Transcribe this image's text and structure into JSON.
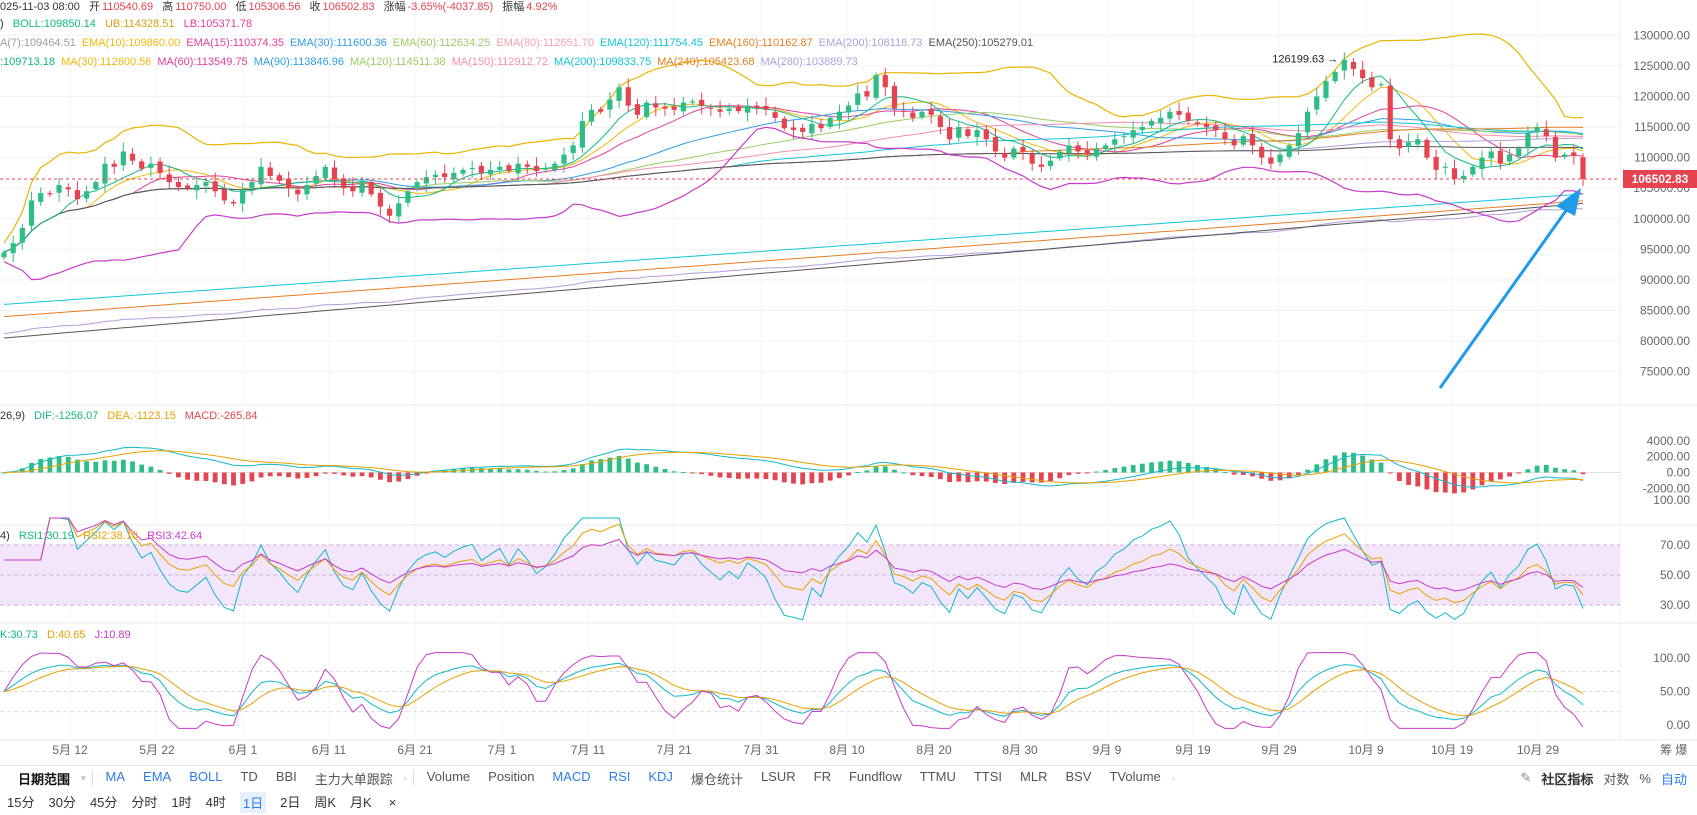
{
  "header": {
    "time": "025-11-03 08:00",
    "open_label": "开",
    "open": "110540.69",
    "high_label": "高",
    "high": "110750.00",
    "low_label": "低",
    "low": "105306.56",
    "close_label": "收",
    "close": "106502.83",
    "change_label": "涨幅",
    "change": "-3.65%(-4037.85)",
    "amp_label": "振幅",
    "amplitude": "4.92%"
  },
  "boll": {
    "mid": "BOLL:109850.14",
    "ub": "UB:114328.51",
    "lb": "LB:105371.78"
  },
  "ema_row": [
    {
      "text": "A(7):109464.51",
      "color": "#9e9e9e"
    },
    {
      "text": "EMA(10):109860.00",
      "color": "#f0b90b"
    },
    {
      "text": "EMA(15):110374.35",
      "color": "#e0409a"
    },
    {
      "text": "EMA(30):111600.36",
      "color": "#2f9ee6"
    },
    {
      "text": "EMA(60):112634.25",
      "color": "#9ccc65"
    },
    {
      "text": "EMA(80):112651.70",
      "color": "#f4a3b0"
    },
    {
      "text": "EMA(120):111754.45",
      "color": "#12c5d8"
    },
    {
      "text": "EMA(160):110162.87",
      "color": "#e67e22"
    },
    {
      "text": "EMA(200):108118.73",
      "color": "#b39ddb"
    },
    {
      "text": "EMA(250):105279.01",
      "color": "#555555"
    }
  ],
  "ma_row": [
    {
      "text": ":109713.18",
      "color": "#12b886"
    },
    {
      "text": "MA(30):112600.56",
      "color": "#f0b90b"
    },
    {
      "text": "MA(60):113549.75",
      "color": "#e0409a"
    },
    {
      "text": "MA(90):113846.96",
      "color": "#2f9ee6"
    },
    {
      "text": "MA(120):114511.38",
      "color": "#9ccc65"
    },
    {
      "text": "MA(150):112912.72",
      "color": "#f48fb1"
    },
    {
      "text": "MA(200):109833.75",
      "color": "#12c5d8"
    },
    {
      "text": "MA(240):105423.68",
      "color": "#e67e22"
    },
    {
      "text": "MA(280):103889.73",
      "color": "#b39ddb"
    }
  ],
  "macd": {
    "params": "26,9)",
    "dif": "DIF:-1256.07",
    "dea": "DEA:-1123.15",
    "macd": "MACD:-265.84"
  },
  "rsi": {
    "params": "4)",
    "rsi1": "RSI1:30.19",
    "rsi2": "RSI2:38.10",
    "rsi3": "RSI3:42.64"
  },
  "kdj": {
    "k": "K:30.73",
    "d": "D:40.65",
    "j": "J:10.89"
  },
  "colors": {
    "up": "#2ebd85",
    "down": "#e5434f",
    "accent": "#2d7be8",
    "arrow": "#1e9be9"
  },
  "bottom_bar": {
    "date_range": "日期范围",
    "left_items": [
      "MA",
      "EMA",
      "BOLL",
      "TD",
      "BBI",
      "主力大单跟踪"
    ],
    "mid_items": [
      "Volume",
      "Position",
      "MACD",
      "RSI",
      "KDJ",
      "爆仓统计",
      "LSUR",
      "FR",
      "Fundflow",
      "TTMU",
      "TTSI",
      "MLR",
      "BSV",
      "TVolume"
    ],
    "community": "社区指标",
    "log": "对数",
    "pct": "%",
    "auto": "自动"
  },
  "interval_bar": {
    "items": [
      "15分",
      "30分",
      "45分",
      "分时",
      "1时",
      "4时",
      "1日",
      "2日",
      "周K",
      "月K"
    ],
    "active": "1日",
    "close": "×"
  },
  "chart_data": {
    "type": "candlestick",
    "x_tick_labels": [
      "5月 12",
      "5月 22",
      "6月 1",
      "6月 11",
      "6月 21",
      "7月 1",
      "7月 11",
      "7月 21",
      "7月 31",
      "8月 10",
      "8月 20",
      "8月 30",
      "9月 9",
      "9月 19",
      "9月 29",
      "10月 9",
      "10月 19",
      "10月 29"
    ],
    "price_ticks": [
      75000,
      80000,
      85000,
      90000,
      95000,
      100000,
      105000,
      110000,
      115000,
      120000,
      125000,
      130000
    ],
    "price_tick_labels": [
      "75000.00",
      "80000.00",
      "85000.00",
      "90000.00",
      "95000.00",
      "100000.00",
      "105000.00",
      "110000.00",
      "115000.00",
      "120000.00",
      "125000.00",
      "130000.00"
    ],
    "price_range": [
      72000,
      132500
    ],
    "last_price": "106502.83",
    "high_marker": "126199.63 →",
    "candle_closes": [
      94500,
      96000,
      98500,
      103000,
      104200,
      104000,
      105500,
      104800,
      103200,
      104500,
      106000,
      109000,
      108500,
      111000,
      109500,
      108200,
      109000,
      107500,
      106000,
      105200,
      105000,
      105500,
      106000,
      104500,
      103000,
      102500,
      104800,
      106000,
      108500,
      107000,
      106200,
      105000,
      104000,
      105500,
      107000,
      108500,
      106500,
      105000,
      104500,
      106000,
      104000,
      102000,
      100500,
      102500,
      104500,
      106000,
      106800,
      107200,
      106800,
      107500,
      108000,
      108300,
      107500,
      108000,
      108500,
      107800,
      109000,
      108500,
      107800,
      108200,
      109000,
      110500,
      112000,
      116000,
      117800,
      117500,
      119500,
      121500,
      118500,
      117000,
      119000,
      118200,
      118000,
      117800,
      119000,
      119200,
      118500,
      118000,
      117500,
      118000,
      117600,
      118500,
      118200,
      117800,
      116500,
      114800,
      114500,
      114200,
      115500,
      114800,
      116500,
      117500,
      118500,
      120500,
      120000,
      123500,
      121500,
      118000,
      117500,
      116500,
      117500,
      117000,
      115000,
      113000,
      115000,
      113500,
      114500,
      113000,
      111000,
      110000,
      111500,
      111000,
      109000,
      108500,
      109500,
      111000,
      112000,
      111000,
      110500,
      111500,
      112000,
      113000,
      113500,
      114500,
      115000,
      116000,
      116500,
      117500,
      117000,
      116000,
      115500,
      115000,
      114500,
      113000,
      112000,
      113500,
      112000,
      110000,
      109000,
      110500,
      112000,
      114000,
      117500,
      120000,
      122500,
      124000,
      126000,
      124500,
      123000,
      121500,
      122000,
      113000,
      111500,
      112500,
      113000,
      110000,
      108000,
      108500,
      106500,
      107000,
      108500,
      110000,
      111000,
      109000,
      110500,
      111500,
      114000,
      115000,
      113500,
      110000,
      110500,
      110300,
      106500
    ]
  }
}
